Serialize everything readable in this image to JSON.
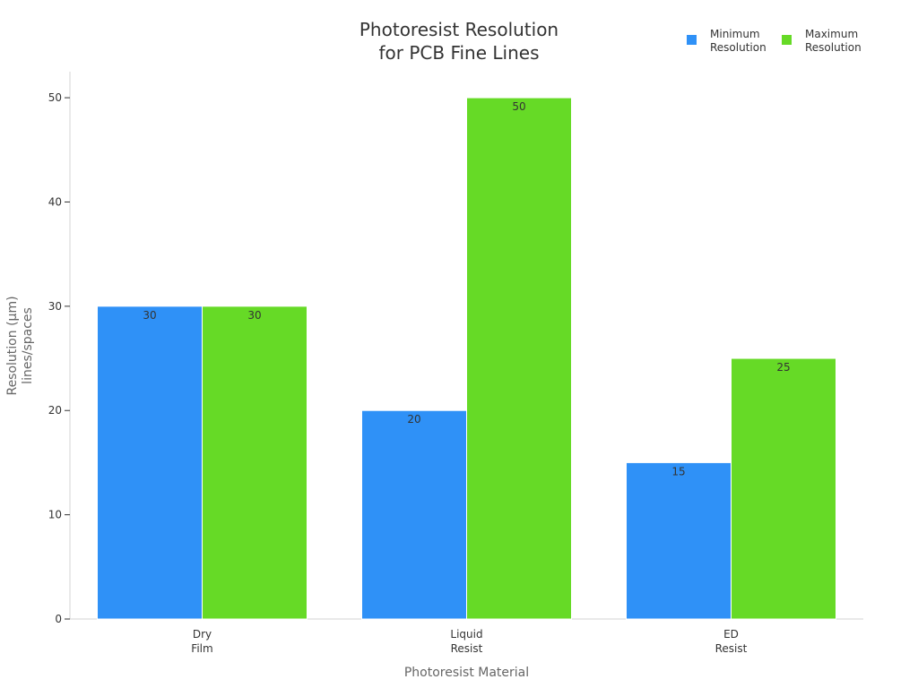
{
  "chart_data": {
    "type": "bar",
    "title": [
      "Photoresist Resolution",
      "for PCB Fine Lines"
    ],
    "xlabel": "Photoresist Material",
    "ylabel": [
      "Resolution (µm)",
      "lines/spaces"
    ],
    "categories": [
      [
        "Dry",
        "Film"
      ],
      [
        "Liquid",
        "Resist"
      ],
      [
        "ED",
        "Resist"
      ]
    ],
    "series": [
      {
        "name": [
          "Minimum",
          "Resolution"
        ],
        "color": "#2f91f7",
        "values": [
          30,
          20,
          15
        ]
      },
      {
        "name": [
          "Maximum",
          "Resolution"
        ],
        "color": "#66da26",
        "values": [
          30,
          50,
          25
        ]
      }
    ],
    "ylim": [
      0,
      52.5
    ],
    "yticks": [
      0,
      10,
      20,
      30,
      40,
      50
    ],
    "grid": false,
    "legend_position": "top-right",
    "data_labels": true
  }
}
